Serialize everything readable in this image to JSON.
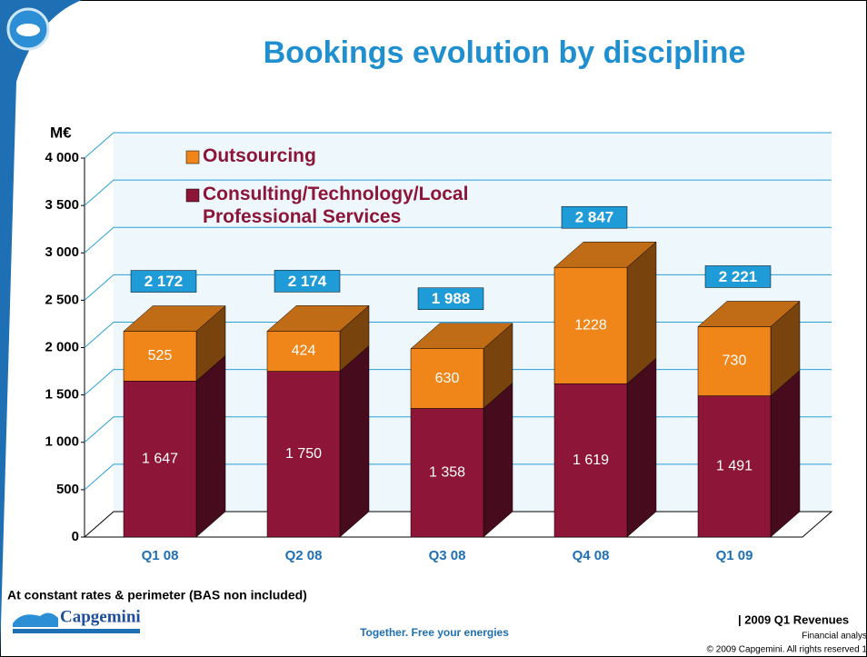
{
  "slide": {
    "logo": "Capgemini",
    "tagline": "Together. Free your energies",
    "section": "| 2009 Q1 Revenues",
    "audience": "Financial analys",
    "copyright": "© 2009 Capgemini. All rights reserved 1",
    "footnote": "At constant rates & perimeter (BAS non included)"
  },
  "chart_data": {
    "type": "bar",
    "stacked": true,
    "title": "Bookings evolution by discipline",
    "y_label": "M€",
    "categories": [
      "Q1 08",
      "Q2 08",
      "Q3 08",
      "Q4 08",
      "Q1 09"
    ],
    "series": [
      {
        "name": "Consulting/Technology/Local Professional Services",
        "color": "#8c1538",
        "values": [
          1647,
          1750,
          1358,
          1619,
          1491
        ],
        "value_labels": [
          "1 647",
          "1 750",
          "1 358",
          "1 619",
          "1 491"
        ]
      },
      {
        "name": "Outsourcing",
        "color": "#f0861a",
        "values": [
          525,
          424,
          630,
          1228,
          730
        ]
      }
    ],
    "totals": [
      2172,
      2174,
      1988,
      2847,
      2221
    ],
    "total_labels": [
      "2 172",
      "2 174",
      "1 988",
      "2 847",
      "2 221"
    ],
    "ylim": [
      0,
      4000
    ],
    "yticks": [
      0,
      500,
      {
        "value": 1000,
        "label": "1 000"
      },
      {
        "value": 1500,
        "label": "1 500"
      },
      {
        "value": 2000,
        "label": "2 000"
      },
      {
        "value": 2500,
        "label": "2 500"
      },
      {
        "value": 3000,
        "label": "3 000"
      },
      {
        "value": 3500,
        "label": "3 500"
      },
      {
        "value": 4000,
        "label": "4 000"
      }
    ],
    "grid": true,
    "legend": "top-left"
  }
}
